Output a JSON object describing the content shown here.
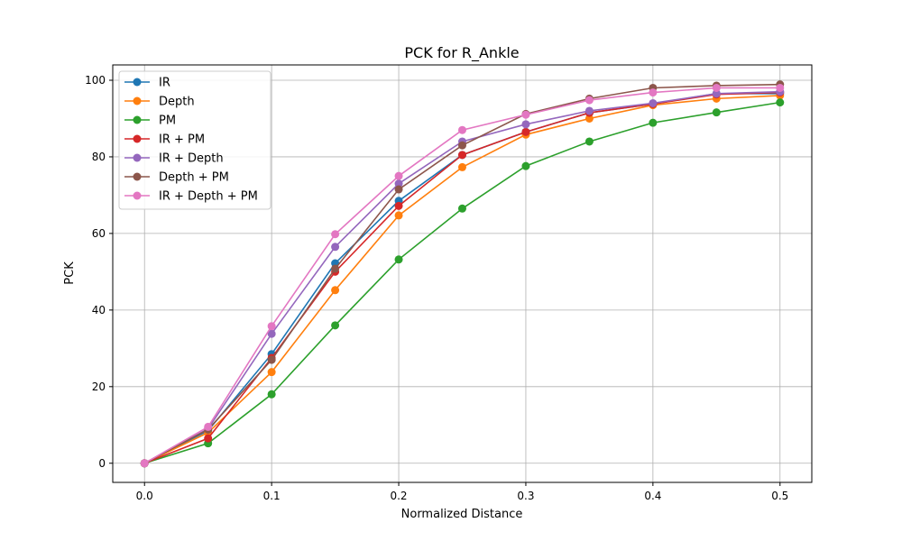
{
  "chart_data": {
    "type": "line",
    "title": "PCK for R_Ankle",
    "xlabel": "Normalized Distance",
    "ylabel": "PCK",
    "xlim": [
      -0.025,
      0.525
    ],
    "ylim": [
      -5,
      104
    ],
    "xticks": [
      0.0,
      0.1,
      0.2,
      0.3,
      0.4,
      0.5
    ],
    "xtick_labels": [
      "0.0",
      "0.1",
      "0.2",
      "0.3",
      "0.4",
      "0.5"
    ],
    "yticks": [
      0,
      20,
      40,
      60,
      80,
      100
    ],
    "ytick_labels": [
      "0",
      "20",
      "40",
      "60",
      "80",
      "100"
    ],
    "grid": true,
    "legend_position": "top-left",
    "x": [
      0.0,
      0.05,
      0.1,
      0.15,
      0.2,
      0.25,
      0.3,
      0.35,
      0.4,
      0.45,
      0.5
    ],
    "series": [
      {
        "name": "IR",
        "color": "#1f77b4",
        "values": [
          0,
          8.5,
          28.5,
          52.2,
          68.5,
          80.5,
          86.5,
          91.5,
          93.8,
          96.5,
          96.5
        ]
      },
      {
        "name": "Depth",
        "color": "#ff7f0e",
        "values": [
          0,
          8.0,
          23.8,
          45.2,
          64.7,
          77.3,
          85.8,
          90.0,
          93.5,
          95.2,
          96.0
        ]
      },
      {
        "name": "PM",
        "color": "#2ca02c",
        "values": [
          0,
          5.2,
          18.0,
          36.0,
          53.2,
          66.5,
          77.6,
          84.0,
          88.9,
          91.6,
          94.2
        ]
      },
      {
        "name": "IR + PM",
        "color": "#d62728",
        "values": [
          0,
          6.5,
          27.5,
          50.0,
          67.2,
          80.5,
          86.5,
          91.5,
          93.8,
          96.3,
          96.8
        ]
      },
      {
        "name": "IR + Depth",
        "color": "#9467bd",
        "values": [
          0,
          9.0,
          33.8,
          56.5,
          73.0,
          84.0,
          88.5,
          92.0,
          94.0,
          96.5,
          97.0
        ]
      },
      {
        "name": "Depth + PM",
        "color": "#8c564b",
        "values": [
          0,
          8.8,
          27.0,
          50.8,
          71.5,
          83.0,
          91.2,
          95.2,
          98.0,
          98.6,
          98.9
        ]
      },
      {
        "name": "IR + Depth + PM",
        "color": "#e377c2",
        "values": [
          0,
          9.5,
          35.8,
          59.8,
          75.0,
          87.0,
          91.0,
          94.8,
          96.8,
          98.0,
          98.0
        ]
      }
    ]
  }
}
